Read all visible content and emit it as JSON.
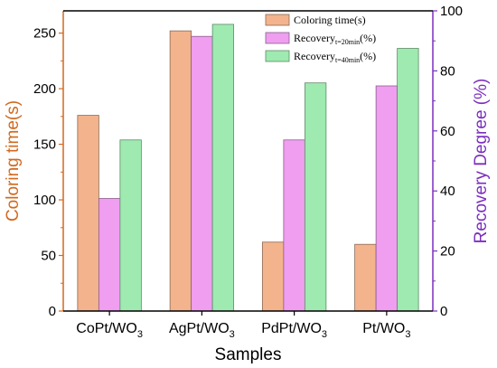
{
  "chart_data": {
    "type": "bar",
    "categories": [
      {
        "base": "CoPt/WO",
        "sub": "3"
      },
      {
        "base": "AgPt/WO",
        "sub": "3"
      },
      {
        "base": "PdPt/WO",
        "sub": "3"
      },
      {
        "base": "Pt/WO",
        "sub": "3"
      }
    ],
    "xlabel": "Samples",
    "ylabel_left": "Coloring time(s)",
    "ylabel_right": "Recovery Degree (%)",
    "ylim_left": [
      0,
      270
    ],
    "ylim_right": [
      0,
      100
    ],
    "yticks_left": [
      0,
      50,
      100,
      150,
      200,
      250
    ],
    "yticks_right": [
      0,
      20,
      40,
      60,
      80,
      100
    ],
    "series": [
      {
        "name": "Coloring time(s)",
        "axis": "left",
        "color": "#f3b38c",
        "edge": "#8a6a55",
        "values": [
          176,
          252,
          62,
          60
        ]
      },
      {
        "name": "Recovery",
        "name_sub": "t=20min",
        "name_suffix": "(%)",
        "axis": "right",
        "color": "#ef9ef0",
        "edge": "#8a5f8a",
        "values": [
          37.5,
          91.5,
          57,
          75
        ]
      },
      {
        "name": "Recovery",
        "name_sub": "t=40min",
        "name_suffix": "(%)",
        "axis": "right",
        "color": "#9eeab0",
        "edge": "#5f8a68",
        "values": [
          57,
          95.5,
          76,
          87.5
        ]
      }
    ],
    "left_axis_color": "#d2691e",
    "right_axis_color": "#7b2fbe",
    "legend_position": "top-right",
    "grid": false
  }
}
